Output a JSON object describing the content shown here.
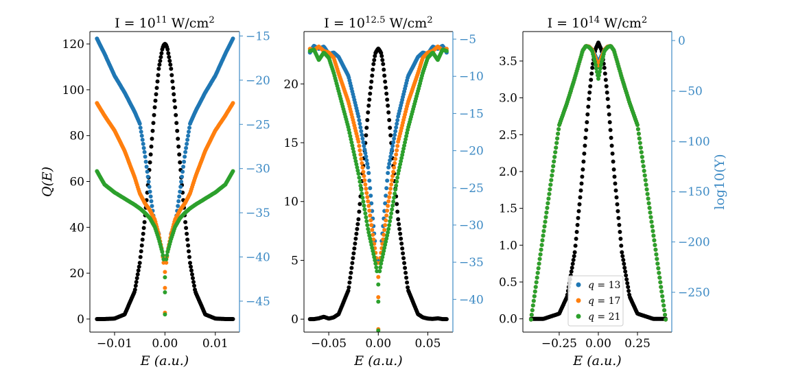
{
  "chart_data": [
    {
      "type": "scatter",
      "title": {
        "prefix": "I = 10",
        "exp": "11",
        "unit": " W/cm",
        "unit_exp": "2"
      },
      "xlabel": "E (a.u.)",
      "ylabel": "Q(E)",
      "ylabel_right": "",
      "xlim": [
        -0.0149,
        0.0148
      ],
      "ylim": [
        -5.7,
        125.4
      ],
      "ylim_right": [
        -48.5,
        -14.5
      ],
      "xticks": [
        {
          "v": -0.01,
          "label": "−0.01"
        },
        {
          "v": 0,
          "label": "0.00"
        },
        {
          "v": 0.01,
          "label": "0.01"
        }
      ],
      "yticks": [
        {
          "v": 0,
          "label": "0"
        },
        {
          "v": 20,
          "label": "20"
        },
        {
          "v": 40,
          "label": "40"
        },
        {
          "v": 60,
          "label": "60"
        },
        {
          "v": 80,
          "label": "80"
        },
        {
          "v": 100,
          "label": "100"
        },
        {
          "v": 120,
          "label": "120"
        }
      ],
      "yticks_right": [
        {
          "v": -15,
          "label": "−15"
        },
        {
          "v": -20,
          "label": "−20"
        },
        {
          "v": -25,
          "label": "−25"
        },
        {
          "v": -30,
          "label": "−30"
        },
        {
          "v": -35,
          "label": "−35"
        },
        {
          "v": -40,
          "label": "−40"
        },
        {
          "v": -45,
          "label": "−45"
        }
      ],
      "x": [
        -0.0135,
        -0.012,
        -0.01,
        -0.008,
        -0.006,
        -0.005,
        -0.004,
        -0.003,
        -0.002,
        -0.0012,
        -0.0005,
        -0.0002,
        0,
        0.0002,
        0.0005,
        0.0012,
        0.002,
        0.003,
        0.004,
        0.005,
        0.006,
        0.008,
        0.01,
        0.012,
        0.0135
      ],
      "series": [
        {
          "key": "Q",
          "axis": "left",
          "color": "#000000",
          "y": [
            0,
            0,
            0.2,
            2.0,
            12.1,
            24.4,
            43.2,
            67.6,
            93.0,
            109.5,
            118.1,
            119.7,
            120,
            119.7,
            118.1,
            109.5,
            93.0,
            67.6,
            43.2,
            24.4,
            12.1,
            2.0,
            0.2,
            0,
            0
          ],
          "isolated": []
        },
        {
          "key": "q13",
          "axis": "right",
          "color": "#1f77b4",
          "y": [
            -15.3,
            -17.0,
            -19.5,
            -21.4,
            -23.6,
            -24.9,
            -28.3,
            -32.5,
            -36.5,
            -37.4,
            null,
            null,
            null,
            null,
            null,
            -37.4,
            -36.5,
            -32.5,
            -28.3,
            -24.9,
            -23.6,
            -21.4,
            -19.5,
            -17.0,
            -15.3
          ],
          "isolated": []
        },
        {
          "key": "q17",
          "axis": "right",
          "color": "#ff7f0e",
          "y": [
            -22.6,
            -24.0,
            -25.7,
            -28.0,
            -31.0,
            -32.8,
            -33.9,
            -34.7,
            -35.8,
            -37.5,
            -39.5,
            -41.0,
            null,
            -41.0,
            -39.5,
            -37.5,
            -35.8,
            -34.7,
            -33.9,
            -32.8,
            -31.0,
            -28.0,
            -25.7,
            -24.0,
            -22.6
          ],
          "isolated": [
            [
              0,
              -41.7
            ],
            [
              0,
              -43.5
            ],
            [
              0,
              -46.3
            ]
          ]
        },
        {
          "key": "q21",
          "axis": "right",
          "color": "#2ca02c",
          "y": [
            -30.3,
            -31.8,
            -32.7,
            -33.4,
            -34.1,
            -34.5,
            -35.0,
            -35.6,
            -36.6,
            -38.0,
            -39.5,
            -40.5,
            null,
            -40.5,
            -39.5,
            -38.0,
            -36.6,
            -35.6,
            -35.0,
            -34.5,
            -34.1,
            -33.4,
            -32.7,
            -31.8,
            -30.3
          ],
          "isolated": [
            [
              0,
              -42.3
            ],
            [
              0,
              -44.0
            ],
            [
              0,
              -46.5
            ]
          ]
        }
      ]
    },
    {
      "type": "scatter",
      "title": {
        "prefix": "I = 10",
        "exp": "12.5",
        "unit": " W/cm",
        "unit_exp": "2"
      },
      "xlabel": "E (a.u.)",
      "ylabel": "",
      "ylabel_right": "",
      "xlim": [
        -0.075,
        0.0753
      ],
      "ylim": [
        -1.1,
        24.45
      ],
      "ylim_right": [
        -44.4,
        -3.98
      ],
      "xticks": [
        {
          "v": -0.05,
          "label": "−0.05"
        },
        {
          "v": 0,
          "label": "0.00"
        },
        {
          "v": 0.05,
          "label": "0.05"
        }
      ],
      "yticks": [
        {
          "v": 0,
          "label": "0"
        },
        {
          "v": 5,
          "label": "5"
        },
        {
          "v": 10,
          "label": "10"
        },
        {
          "v": 15,
          "label": "15"
        },
        {
          "v": 20,
          "label": "20"
        }
      ],
      "yticks_right": [
        {
          "v": -5,
          "label": "−5"
        },
        {
          "v": -10,
          "label": "−10"
        },
        {
          "v": -15,
          "label": "−15"
        },
        {
          "v": -20,
          "label": "−20"
        },
        {
          "v": -25,
          "label": "−25"
        },
        {
          "v": -30,
          "label": "−30"
        },
        {
          "v": -35,
          "label": "−35"
        },
        {
          "v": -40,
          "label": "−40"
        }
      ],
      "x": [
        -0.069,
        -0.065,
        -0.06,
        -0.055,
        -0.05,
        -0.045,
        -0.04,
        -0.03,
        -0.02,
        -0.015,
        -0.01,
        -0.005,
        -0.003,
        -0.001,
        0,
        0.001,
        0.003,
        0.005,
        0.01,
        0.015,
        0.02,
        0.03,
        0.04,
        0.045,
        0.05,
        0.055,
        0.06,
        0.065,
        0.069
      ],
      "series": [
        {
          "key": "Q",
          "axis": "left",
          "color": "#000000",
          "y": [
            0,
            0,
            0.07,
            0.2,
            0.05,
            0.15,
            0.43,
            2.5,
            8.5,
            13.2,
            17.9,
            21.6,
            22.6,
            22.9,
            23,
            22.9,
            22.6,
            21.6,
            17.9,
            13.2,
            8.5,
            2.5,
            0.43,
            0.15,
            0.05,
            0.02,
            0.07,
            0,
            0
          ],
          "isolated": []
        },
        {
          "key": "q13",
          "axis": "right",
          "color": "#1f77b4",
          "y": [
            -6.8,
            -5.9,
            -6.3,
            -6.0,
            -7.0,
            -6.8,
            -7.4,
            -10.0,
            -15.4,
            -19.0,
            -22.5,
            -29.9,
            -32.8,
            null,
            null,
            null,
            -32.8,
            -29.9,
            -22.5,
            -19.0,
            -15.4,
            -10.0,
            -7.4,
            -6.8,
            -7.0,
            -6.0,
            -6.3,
            -5.9,
            -6.8
          ],
          "isolated": [
            [
              0,
              -34.8
            ]
          ]
        },
        {
          "key": "q17",
          "axis": "right",
          "color": "#ff7f0e",
          "y": [
            -6.3,
            -6.5,
            -6.0,
            -6.6,
            -6.8,
            -7.5,
            -9.6,
            -13.5,
            -18.8,
            -23.0,
            -27.1,
            -31.8,
            -33.5,
            -35.5,
            null,
            -35.5,
            -33.5,
            -31.8,
            -27.1,
            -23.0,
            -18.8,
            -13.5,
            -9.6,
            -7.5,
            -6.8,
            -6.6,
            -6.0,
            -6.5,
            -6.3
          ],
          "isolated": [
            [
              0,
              -37.0
            ],
            [
              0,
              -39.7
            ],
            [
              0,
              -44.0
            ]
          ]
        },
        {
          "key": "q21",
          "axis": "right",
          "color": "#2ca02c",
          "y": [
            -6.6,
            -6.4,
            -7.8,
            -6.8,
            -7.5,
            -9.5,
            -12.0,
            -17.0,
            -23.1,
            -27.0,
            -30.8,
            -33.8,
            -35.0,
            -36.5,
            null,
            -36.5,
            -35.0,
            -33.8,
            -30.8,
            -27.0,
            -23.1,
            -17.0,
            -12.0,
            -9.5,
            -7.5,
            -6.8,
            -7.8,
            -6.4,
            -6.6
          ],
          "isolated": [
            [
              0,
              -38.0
            ],
            [
              0,
              -40.3
            ],
            [
              0,
              -44.2
            ]
          ]
        }
      ]
    },
    {
      "type": "scatter",
      "title": {
        "prefix": "I = 10",
        "exp": "14",
        "unit": " W/cm",
        "unit_exp": "2"
      },
      "xlabel": "E (a.u.)",
      "ylabel": "",
      "ylabel_right": "log10(Y)",
      "xlim": [
        -0.482,
        0.469
      ],
      "ylim": [
        -0.18,
        3.9
      ],
      "ylim_right": [
        -289.5,
        8.9
      ],
      "xticks": [
        {
          "v": -0.25,
          "label": "−0.25"
        },
        {
          "v": 0,
          "label": "0.00"
        },
        {
          "v": 0.25,
          "label": "0.25"
        }
      ],
      "yticks": [
        {
          "v": 0,
          "label": "0.0"
        },
        {
          "v": 0.5,
          "label": "0.5"
        },
        {
          "v": 1.0,
          "label": "1.0"
        },
        {
          "v": 1.5,
          "label": "1.5"
        },
        {
          "v": 2.0,
          "label": "2.0"
        },
        {
          "v": 2.5,
          "label": "2.5"
        },
        {
          "v": 3.0,
          "label": "3.0"
        },
        {
          "v": 3.5,
          "label": "3.5"
        }
      ],
      "yticks_right": [
        {
          "v": 0,
          "label": "0"
        },
        {
          "v": -50,
          "label": "−50"
        },
        {
          "v": -100,
          "label": "−100"
        },
        {
          "v": -150,
          "label": "−150"
        },
        {
          "v": -200,
          "label": "−200"
        },
        {
          "v": -250,
          "label": "−250"
        }
      ],
      "x": [
        -0.43,
        -0.35,
        -0.25,
        -0.2,
        -0.15,
        -0.1,
        -0.08,
        -0.06,
        -0.04,
        -0.02,
        0,
        0.02,
        0.04,
        0.06,
        0.08,
        0.1,
        0.15,
        0.2,
        0.25,
        0.35,
        0.43
      ],
      "series": [
        {
          "key": "Q",
          "axis": "left",
          "color": "#000000",
          "y": [
            0,
            0,
            0.07,
            0.3,
            0.91,
            2.0,
            2.5,
            2.99,
            3.39,
            3.65,
            3.75,
            3.65,
            3.39,
            2.99,
            2.5,
            2.0,
            0.91,
            0.3,
            0.07,
            0,
            0
          ],
          "isolated": []
        },
        {
          "key": "q13",
          "axis": "right",
          "color": "#1f77b4",
          "y": [
            -277,
            -191,
            -84,
            -62,
            -37,
            -10,
            -5.4,
            -6,
            -9,
            -15,
            -22,
            -15,
            -9,
            -6,
            -5.4,
            -10,
            -37,
            -62,
            -84,
            -191,
            -277
          ],
          "isolated": []
        },
        {
          "key": "q17",
          "axis": "right",
          "color": "#ff7f0e",
          "y": [
            -277,
            -191,
            -84,
            -62,
            -37,
            -10,
            -5.4,
            -6,
            -9,
            -17,
            -26,
            -17,
            -9,
            -6,
            -5.4,
            -10,
            -37,
            -62,
            -84,
            -191,
            -277
          ],
          "isolated": []
        },
        {
          "key": "q21",
          "axis": "right",
          "color": "#2ca02c",
          "y": [
            -277,
            -191,
            -84,
            -62,
            -37,
            -10,
            -5.4,
            -6.5,
            -10,
            -22,
            -38,
            -22,
            -10,
            -6.5,
            -5.4,
            -10,
            -37,
            -62,
            -84,
            -191,
            -277
          ],
          "isolated": []
        }
      ],
      "legend": {
        "placement": "lower center",
        "entries": [
          {
            "var": "q",
            "value": "13",
            "color": "#1f77b4"
          },
          {
            "var": "q",
            "value": "17",
            "color": "#ff7f0e"
          },
          {
            "var": "q",
            "value": "21",
            "color": "#2ca02c"
          }
        ]
      }
    }
  ],
  "right_axis_color": "#3d8ac4"
}
